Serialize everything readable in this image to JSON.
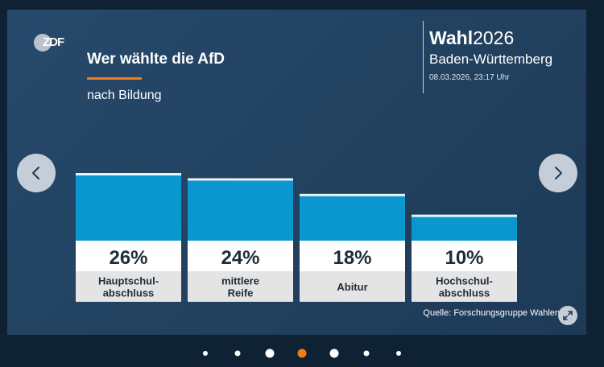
{
  "logo_text": "ZDF",
  "title": "Wer wählte die AfD",
  "subtitle": "nach Bildung",
  "brand": {
    "wahl_bold": "Wahl",
    "wahl_year": "2026",
    "region": "Baden-Württemberg",
    "datetime": "08.03.2026, 23:17 Uhr"
  },
  "colors": {
    "bar": "#0a97cf",
    "accent": "#f07d19",
    "label_box": "#ffffff",
    "category_box": "#e4e4e4"
  },
  "chart_data": {
    "type": "bar",
    "title": "Wer wählte die AfD",
    "subtitle": "nach Bildung",
    "categories": [
      "Hauptschul-\nabschluss",
      "mittlere\nReife",
      "Abitur",
      "Hochschul-\nabschluss"
    ],
    "values": [
      26,
      24,
      18,
      10
    ],
    "value_labels": [
      "26%",
      "24%",
      "18%",
      "10%"
    ],
    "unit": "%",
    "ylim": [
      0,
      26
    ]
  },
  "source": "Quelle: Forschungsgruppe Wahlen",
  "pagination": {
    "count": 7,
    "active_index": 3
  },
  "icons": {
    "prev": "chevron-left-icon",
    "next": "chevron-right-icon",
    "expand": "expand-icon"
  }
}
